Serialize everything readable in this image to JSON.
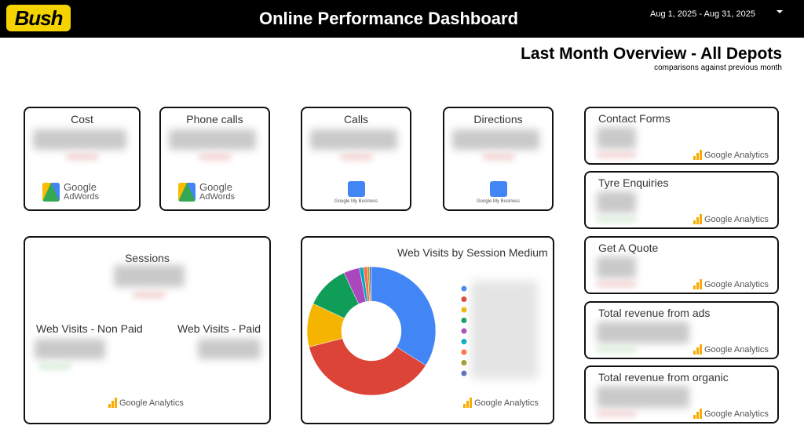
{
  "header": {
    "logo": "Bush",
    "title": "Online Performance Dashboard",
    "date_range": "Aug 1, 2025 - Aug 31, 2025"
  },
  "overview": {
    "title": "Last Month Overview - All Depots",
    "subtitle": "comparisons against previous month"
  },
  "brands": {
    "adwords_top": "Google",
    "adwords_bottom": "AdWords",
    "analytics": "Google Analytics",
    "my_business": "Google My Business"
  },
  "top_cards": [
    "Cost",
    "Phone calls",
    "Calls",
    "Directions"
  ],
  "right_cards": [
    "Contact Forms",
    "Tyre Enquiries",
    "Get A Quote",
    "Total revenue from ads",
    "Total revenue from organic"
  ],
  "sessions": {
    "label": "Sessions",
    "non_paid": "Web Visits - Non Paid",
    "paid": "Web Visits - Paid"
  },
  "chart_data": {
    "type": "pie",
    "title": "Web Visits by Session Medium",
    "donut": true,
    "values": [
      34,
      37,
      11,
      11,
      4,
      1,
      1,
      0.5,
      0.5
    ],
    "colors": [
      "#4285f4",
      "#db4437",
      "#f4b400",
      "#0f9d58",
      "#ab47bc",
      "#00acc1",
      "#ff7043",
      "#9e9d24",
      "#5c6bc0"
    ]
  }
}
